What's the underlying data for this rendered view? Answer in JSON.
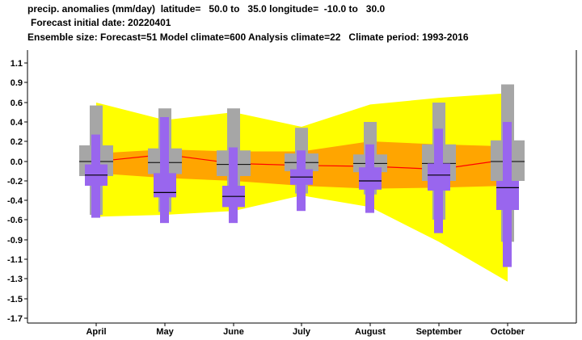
{
  "header": {
    "line1": "precip. anomalies (mm/day)  latitude=   50.0 to   35.0 longitude=  -10.0 to   30.0",
    "line2": "Forecast initial date: 20220401",
    "line3": "Ensemble size: Forecast=51 Model climate=600 Analysis climate=22   Climate period: 1993-2016"
  },
  "chart_data": {
    "type": "box",
    "categories": [
      "April",
      "May",
      "June",
      "July",
      "August",
      "September",
      "October"
    ],
    "y_ticks": [
      1.1,
      0.9,
      0.6,
      0.4,
      0.2,
      0.0,
      -0.2,
      -0.4,
      -0.6,
      -0.9,
      -1.1,
      -1.3,
      -1.5,
      -1.7
    ],
    "y_tick_labels": [
      "1.1",
      "0.9",
      "0.6",
      "0.4",
      "0.2",
      "0.0",
      "-0.2",
      "-0.4",
      "-0.6",
      "-0.9",
      "-1.1",
      "-1.3",
      "-1.5",
      "-1.7"
    ],
    "ylim": [
      -1.8,
      1.2
    ],
    "yellow_band": {
      "upper": [
        0.6,
        0.42,
        0.5,
        0.35,
        0.58,
        0.67,
        0.74
      ],
      "lower": [
        -0.57,
        -0.55,
        -0.51,
        -0.35,
        -0.47,
        -0.92,
        -1.33
      ]
    },
    "orange_band": {
      "upper": [
        0.08,
        0.12,
        0.1,
        0.1,
        0.2,
        0.17,
        0.15
      ],
      "lower": [
        -0.12,
        -0.17,
        -0.2,
        -0.25,
        -0.28,
        -0.27,
        -0.25
      ]
    },
    "red_line": [
      0.0,
      0.07,
      -0.02,
      -0.04,
      -0.05,
      -0.08,
      0.02
    ],
    "model_climate": [
      {
        "whisker_low": -0.55,
        "box_low": -0.15,
        "median": 0.0,
        "box_high": 0.16,
        "whisker_high": 0.57
      },
      {
        "whisker_low": -0.52,
        "box_low": -0.13,
        "median": -0.01,
        "box_high": 0.13,
        "whisker_high": 0.54
      },
      {
        "whisker_low": -0.45,
        "box_low": -0.15,
        "median": -0.03,
        "box_high": 0.11,
        "whisker_high": 0.54
      },
      {
        "whisker_low": -0.33,
        "box_low": -0.1,
        "median": -0.01,
        "box_high": 0.08,
        "whisker_high": 0.34
      },
      {
        "whisker_low": -0.34,
        "box_low": -0.11,
        "median": -0.02,
        "box_high": 0.07,
        "whisker_high": 0.4
      },
      {
        "whisker_low": -0.6,
        "box_low": -0.2,
        "median": -0.02,
        "box_high": 0.17,
        "whisker_high": 0.6
      },
      {
        "whisker_low": -0.92,
        "box_low": -0.2,
        "median": 0.0,
        "box_high": 0.21,
        "whisker_high": 0.87
      }
    ],
    "forecast": [
      {
        "whisker_low": -0.58,
        "box_low": -0.25,
        "median": -0.14,
        "box_high": -0.03,
        "whisker_high": 0.27
      },
      {
        "whisker_low": -0.65,
        "box_low": -0.37,
        "median": -0.32,
        "box_high": -0.12,
        "whisker_high": 0.45
      },
      {
        "whisker_low": -0.65,
        "box_low": -0.47,
        "median": -0.36,
        "box_high": -0.25,
        "whisker_high": 0.14
      },
      {
        "whisker_low": -0.51,
        "box_low": -0.24,
        "median": -0.16,
        "box_high": -0.08,
        "whisker_high": 0.11
      },
      {
        "whisker_low": -0.53,
        "box_low": -0.29,
        "median": -0.2,
        "box_high": -0.06,
        "whisker_high": 0.17
      },
      {
        "whisker_low": -0.8,
        "box_low": -0.3,
        "median": -0.14,
        "box_high": -0.02,
        "whisker_high": 0.33
      },
      {
        "whisker_low": -1.18,
        "box_low": -0.5,
        "median": -0.27,
        "box_high": -0.2,
        "whisker_high": 0.4
      }
    ],
    "colors": {
      "yellow_band": "#ffff00",
      "orange_band": "#ffa500",
      "red_line": "#ff0000",
      "model_climate": "#a6a6a6",
      "forecast": "#9966ee",
      "median": "#000000"
    }
  }
}
